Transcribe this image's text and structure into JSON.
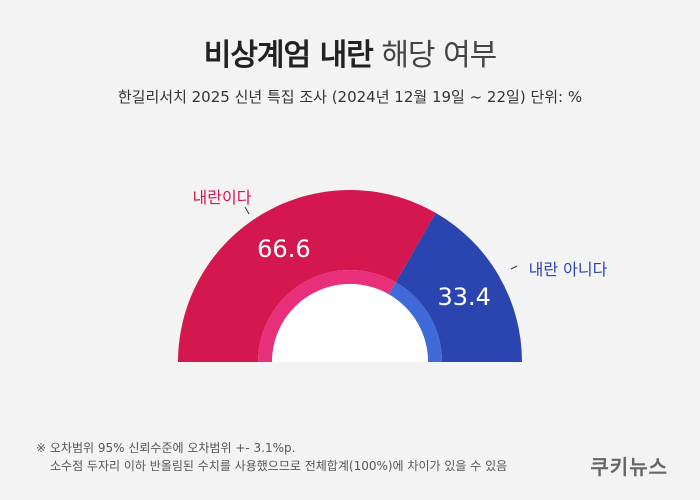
{
  "header": {
    "title_bold": "비상계엄 내란",
    "title_light": "해당 여부",
    "subtitle": "한길리서치 2025 신년 특집 조사 (2024년 12월 19일 ~ 22일) 단위: %"
  },
  "chart_data": {
    "type": "pie",
    "style": "half-donut",
    "unit": "%",
    "categories": [
      "내란이다",
      "내란 아니다"
    ],
    "values": [
      66.6,
      33.4
    ],
    "value_labels": [
      "66.6",
      "33.4"
    ],
    "colors": {
      "내란이다": "#d4174f",
      "내란 아니다": "#2a45b0",
      "내란이다_inner": "#e8307a",
      "내란 아니다_inner": "#3f6ad8"
    }
  },
  "footnote": {
    "line1": "※ 오차범위 95% 신뢰수준에 오차범위 +- 3.1%p.",
    "line2": "소수점 두자리 이하 반올림된 수치를 사용했으므로 전체합계(100%)에 차이가 있을 수 있음"
  },
  "brand": {
    "logo": "쿠키뉴스"
  }
}
